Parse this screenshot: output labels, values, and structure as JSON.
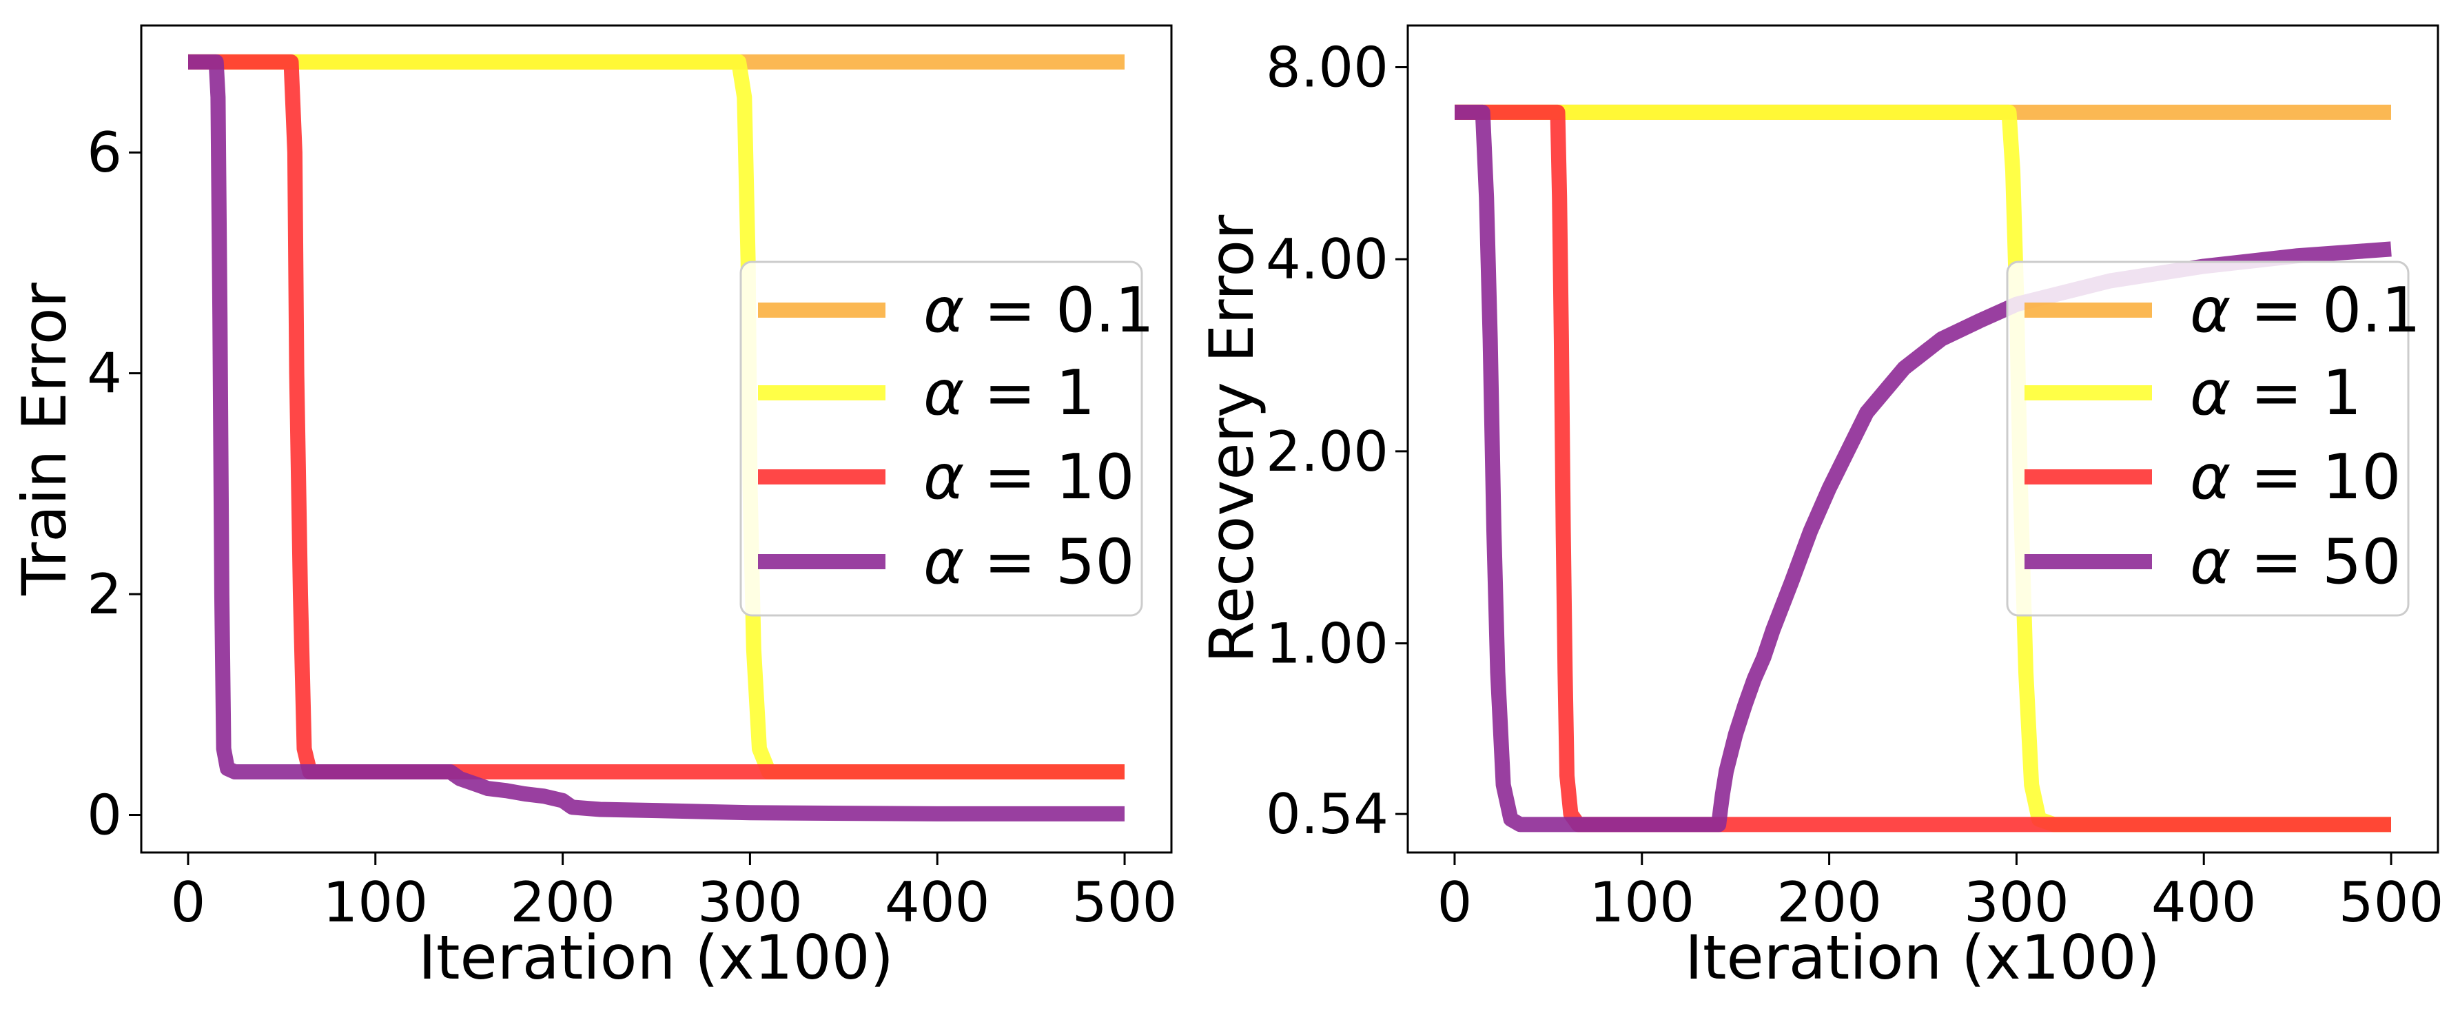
{
  "chart_data": [
    {
      "type": "line",
      "xlabel": "Iteration (x100)",
      "ylabel": "Train Error",
      "yscale": "linear",
      "xlim": [
        -25,
        525
      ],
      "ylim": [
        -0.34,
        7.15
      ],
      "xticks": [
        0,
        100,
        200,
        300,
        400,
        500
      ],
      "xtick_labels": [
        "0",
        "100",
        "200",
        "300",
        "400",
        "500"
      ],
      "yticks": [
        0,
        2,
        4,
        6
      ],
      "ytick_labels": [
        "0",
        "2",
        "4",
        "6"
      ],
      "legend_position": "center-right",
      "series": [
        {
          "name": "α = 0.1",
          "alpha_value": "0.1",
          "color": "#fbb040",
          "x": [
            0,
            500
          ],
          "y": [
            6.82,
            6.82
          ]
        },
        {
          "name": "α = 1",
          "alpha_value": "1",
          "color": "#ffff33",
          "x": [
            0,
            294,
            297,
            299,
            300,
            302,
            305,
            310,
            500
          ],
          "y": [
            6.82,
            6.82,
            6.5,
            5.0,
            3.0,
            1.5,
            0.6,
            0.39,
            0.39
          ]
        },
        {
          "name": "α = 10",
          "alpha_value": "10",
          "color": "#ff3333",
          "x": [
            0,
            55,
            57,
            58,
            60,
            62,
            65,
            500
          ],
          "y": [
            6.82,
            6.82,
            6.0,
            4.0,
            2.0,
            0.6,
            0.39,
            0.39
          ]
        },
        {
          "name": "α = 50",
          "alpha_value": "50",
          "color": "#8e2a96",
          "x": [
            0,
            15,
            16,
            17,
            18,
            19,
            21,
            25,
            140,
            145,
            150,
            155,
            160,
            170,
            180,
            190,
            200,
            205,
            220,
            250,
            300,
            350,
            400,
            500
          ],
          "y": [
            6.82,
            6.82,
            6.5,
            4.5,
            2.0,
            0.6,
            0.42,
            0.39,
            0.39,
            0.33,
            0.3,
            0.27,
            0.24,
            0.22,
            0.19,
            0.17,
            0.13,
            0.07,
            0.05,
            0.04,
            0.02,
            0.015,
            0.01,
            0.01
          ]
        }
      ]
    },
    {
      "type": "line",
      "xlabel": "Iteration (x100)",
      "ylabel": "Recovery Error",
      "yscale": "log",
      "xlim": [
        -25,
        525
      ],
      "ylim": [
        0.47,
        9.3
      ],
      "xticks": [
        0,
        100,
        200,
        300,
        400,
        500
      ],
      "xtick_labels": [
        "0",
        "100",
        "200",
        "300",
        "400",
        "500"
      ],
      "yticks": [
        0.54,
        1.0,
        2.0,
        4.0,
        8.0
      ],
      "ytick_labels": [
        "0.54",
        "1.00",
        "2.00",
        "4.00",
        "8.00"
      ],
      "legend_position": "center-right",
      "series": [
        {
          "name": "α = 0.1",
          "alpha_value": "0.1",
          "color": "#fbb040",
          "x": [
            0,
            500
          ],
          "y": [
            6.8,
            6.8
          ]
        },
        {
          "name": "α = 1",
          "alpha_value": "1",
          "color": "#ffff33",
          "x": [
            0,
            296,
            298,
            300,
            302,
            305,
            308,
            312,
            320,
            500
          ],
          "y": [
            6.8,
            6.8,
            5.5,
            3.5,
            1.8,
            0.9,
            0.6,
            0.53,
            0.52,
            0.52
          ]
        },
        {
          "name": "α = 10",
          "alpha_value": "10",
          "color": "#ff3333",
          "x": [
            0,
            55,
            56,
            57,
            58,
            59,
            60,
            62,
            66,
            500
          ],
          "y": [
            6.8,
            6.8,
            5.0,
            3.0,
            1.5,
            0.9,
            0.62,
            0.54,
            0.52,
            0.52
          ]
        },
        {
          "name": "α = 50",
          "alpha_value": "50",
          "color": "#8e2a96",
          "x": [
            0,
            15,
            17,
            19,
            21,
            23,
            26,
            30,
            35,
            141,
            142,
            143,
            145,
            150,
            155,
            160,
            165,
            170,
            180,
            190,
            200,
            220,
            240,
            260,
            280,
            300,
            350,
            400,
            450,
            500
          ],
          "y": [
            6.8,
            6.8,
            5.0,
            3.0,
            1.5,
            0.9,
            0.6,
            0.53,
            0.52,
            0.52,
            0.55,
            0.58,
            0.63,
            0.72,
            0.8,
            0.88,
            0.95,
            1.05,
            1.25,
            1.5,
            1.75,
            2.3,
            2.7,
            3.0,
            3.2,
            3.4,
            3.7,
            3.9,
            4.05,
            4.15
          ]
        }
      ]
    }
  ]
}
